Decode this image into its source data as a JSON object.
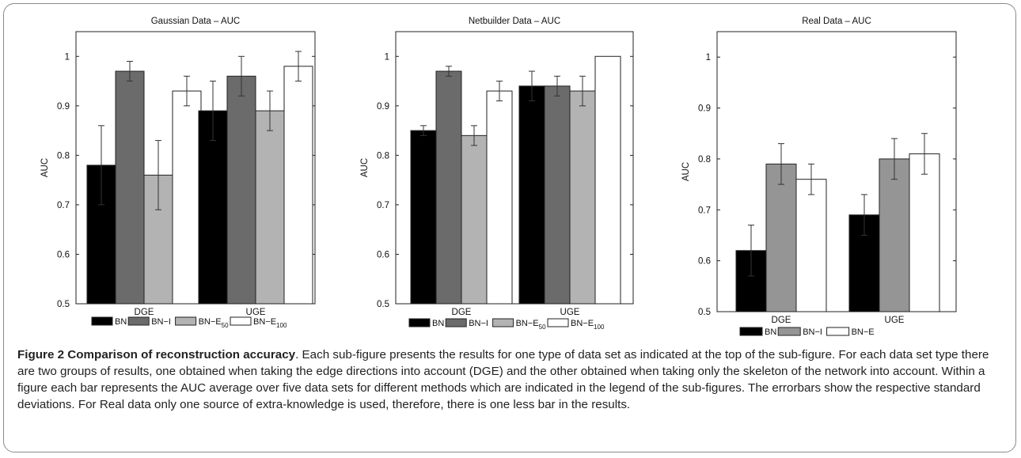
{
  "colors": {
    "BN": "#000000",
    "BN-I": "#6b6b6b",
    "BN-I-real": "#959595",
    "BN-E50": "#b3b3b3",
    "BN-E100": "#ffffff",
    "BN-E": "#ffffff",
    "frame": "#8a8a8a"
  },
  "chart_data": [
    {
      "type": "bar",
      "title": "Gaussian Data – AUC",
      "ylabel": "AUC",
      "xlabel": "",
      "ylim": [
        0.5,
        1.05
      ],
      "yticks": [
        "0.5",
        "0.6",
        "0.7",
        "0.8",
        "0.9",
        "1"
      ],
      "categories": [
        "DGE",
        "UGE"
      ],
      "legend_position": "bottom",
      "grid": false,
      "series": [
        {
          "name": "BN",
          "sub": "",
          "color_key": "BN",
          "values": [
            0.78,
            0.89
          ],
          "errors": [
            0.08,
            0.06
          ]
        },
        {
          "name": "BN−I",
          "sub": "",
          "color_key": "BN-I",
          "values": [
            0.97,
            0.96
          ],
          "errors": [
            0.02,
            0.04
          ]
        },
        {
          "name": "BN−E",
          "sub": "50",
          "color_key": "BN-E50",
          "values": [
            0.76,
            0.89
          ],
          "errors": [
            0.07,
            0.04
          ]
        },
        {
          "name": "BN−E",
          "sub": "100",
          "color_key": "BN-E100",
          "values": [
            0.93,
            0.98
          ],
          "errors": [
            0.03,
            0.03
          ]
        }
      ]
    },
    {
      "type": "bar",
      "title": "Netbuilder Data – AUC",
      "ylabel": "AUC",
      "xlabel": "",
      "ylim": [
        0.5,
        1.05
      ],
      "yticks": [
        "0.5",
        "0.6",
        "0.7",
        "0.8",
        "0.9",
        "1"
      ],
      "categories": [
        "DGE",
        "UGE"
      ],
      "legend_position": "bottom",
      "grid": false,
      "series": [
        {
          "name": "BN",
          "sub": "",
          "color_key": "BN",
          "values": [
            0.85,
            0.94
          ],
          "errors": [
            0.01,
            0.03
          ]
        },
        {
          "name": "BN−I",
          "sub": "",
          "color_key": "BN-I",
          "values": [
            0.97,
            0.94
          ],
          "errors": [
            0.01,
            0.02
          ]
        },
        {
          "name": "BN−E",
          "sub": "50",
          "color_key": "BN-E50",
          "values": [
            0.84,
            0.93
          ],
          "errors": [
            0.02,
            0.03
          ]
        },
        {
          "name": "BN−E",
          "sub": "100",
          "color_key": "BN-E100",
          "values": [
            0.93,
            1.0
          ],
          "errors": [
            0.02,
            0.0
          ]
        }
      ]
    },
    {
      "type": "bar",
      "title": "Real Data – AUC",
      "ylabel": "AUC",
      "xlabel": "",
      "ylim": [
        0.5,
        1.05
      ],
      "yticks": [
        "0.5",
        "0.6",
        "0.7",
        "0.8",
        "0.9",
        "1"
      ],
      "categories": [
        "DGE",
        "UGE"
      ],
      "legend_position": "bottom",
      "grid": false,
      "series": [
        {
          "name": "BN",
          "sub": "",
          "color_key": "BN",
          "values": [
            0.62,
            0.69
          ],
          "errors": [
            0.05,
            0.04
          ]
        },
        {
          "name": "BN−I",
          "sub": "",
          "color_key": "BN-I-real",
          "values": [
            0.79,
            0.8
          ],
          "errors": [
            0.04,
            0.04
          ]
        },
        {
          "name": "BN−E",
          "sub": "",
          "color_key": "BN-E",
          "values": [
            0.76,
            0.81
          ],
          "errors": [
            0.03,
            0.04
          ]
        }
      ]
    }
  ],
  "caption": {
    "label": "Figure 2 Comparison of reconstruction accuracy",
    "text": ". Each sub-figure presents the results for one type of data set as indicated at the top of the sub-figure. For each data set type there are two groups of results, one obtained when taking the edge directions into account (DGE) and the other obtained when taking only the skeleton of the network into account. Within a figure each bar represents the AUC average over five data sets for different methods which are indicated in the legend of the sub-figures. The errorbars show the respective standard deviations. For Real data only one source of extra-knowledge is used, therefore, there is one less bar in the results."
  }
}
